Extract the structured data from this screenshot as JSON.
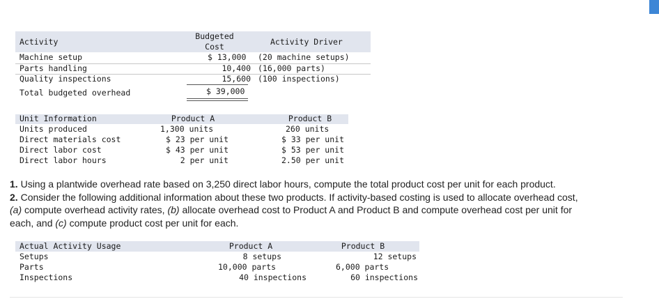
{
  "table1": {
    "headers": {
      "activity": "Activity",
      "budgeted_cost": "Budgeted\nCost",
      "driver": "Activity Driver"
    },
    "rows": [
      {
        "activity": "Machine setup",
        "cost": "$ 13,000",
        "driver": "(20 machine setups)"
      },
      {
        "activity": "Parts handling",
        "cost": "10,400",
        "driver": "(16,000 parts)"
      },
      {
        "activity": "Quality inspections",
        "cost": "15,600",
        "driver": "(100 inspections)"
      }
    ],
    "total": {
      "label": "Total budgeted overhead",
      "cost": "$ 39,000"
    }
  },
  "table2": {
    "headers": {
      "label": "Unit Information",
      "a": "Product A",
      "b": "Product B"
    },
    "rows": [
      {
        "label": "Units produced",
        "a": "1,300 units",
        "b": "260 units"
      },
      {
        "label": "Direct materials cost",
        "a": "$ 23 per unit",
        "b": "$ 33 per unit"
      },
      {
        "label": "Direct labor cost",
        "a": "$ 43 per unit",
        "b": "$ 53 per unit"
      },
      {
        "label": "Direct labor hours",
        "a": "2 per unit",
        "b": "2.50 per unit"
      }
    ]
  },
  "questions": {
    "q1_num": "1.",
    "q1_text": " Using a plantwide overhead rate based on 3,250 direct labor hours, compute the total product cost per unit for each product.",
    "q2_num": "2.",
    "q2_text1": " Consider the following additional information about these two products. If activity-based costing is used to allocate overhead cost,",
    "q2_a": "(a)",
    "q2_text2": " compute overhead activity rates, ",
    "q2_b": "(b)",
    "q2_text3": " allocate overhead cost to Product A and Product B and compute overhead cost per unit for",
    "q2_text4": "each, and ",
    "q2_c": "(c)",
    "q2_text5": " compute product cost per unit for each."
  },
  "table3": {
    "headers": {
      "label": "Actual Activity Usage",
      "a": "Product A",
      "b": "Product B"
    },
    "rows": [
      {
        "label": "Setups",
        "a": "8 setups",
        "b": "12 setups"
      },
      {
        "label": "Parts",
        "a": "10,000 parts",
        "b": "6,000 parts"
      },
      {
        "label": "Inspections",
        "a": "40 inspections",
        "b": "60 inspections"
      }
    ]
  },
  "colors": {
    "header_band": "#e1e5ee",
    "corner_accent": "#3d86d6"
  }
}
